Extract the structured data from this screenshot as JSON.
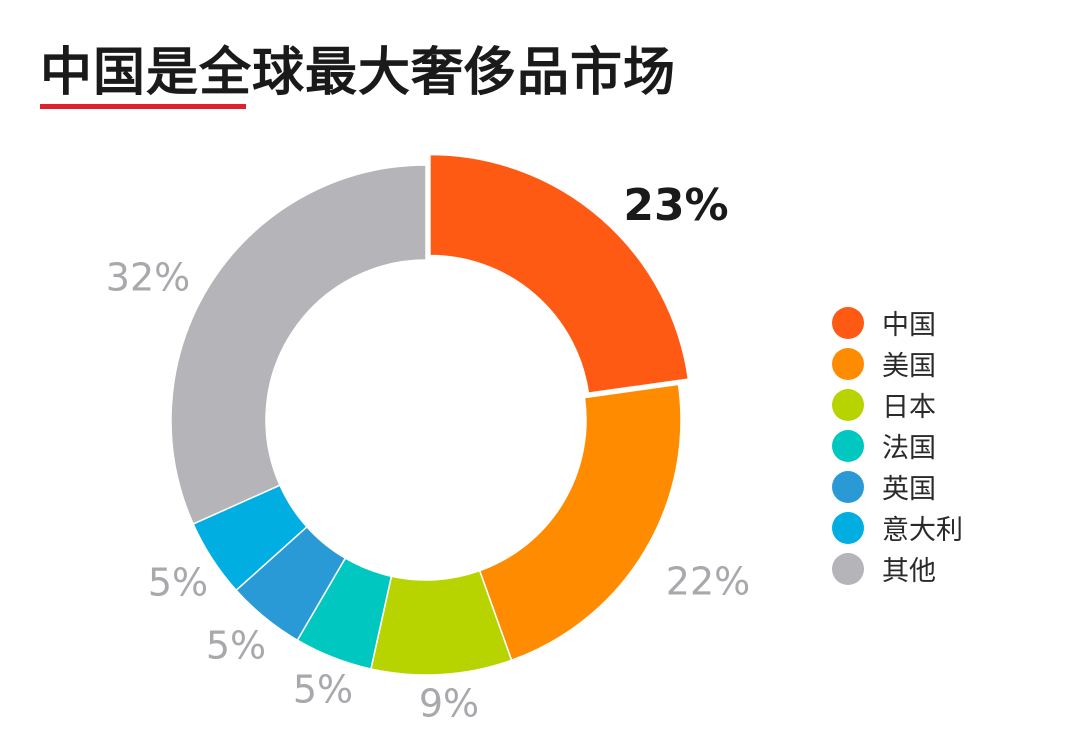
{
  "title": "中国是全球最大奢侈品市场",
  "colors": {
    "title_underline": "#e0202c",
    "label_gray": "#a9a9ad",
    "label_emphasis": "#1a1a1a"
  },
  "chart_data": {
    "type": "pie",
    "donut": true,
    "legend_position": "right",
    "slices": [
      {
        "name": "中国",
        "value": 23,
        "label": "23%",
        "color": "#ff5a14",
        "emphasized": true
      },
      {
        "name": "美国",
        "value": 22,
        "label": "22%",
        "color": "#ff8c00"
      },
      {
        "name": "日本",
        "value": 9,
        "label": "9%",
        "color": "#b8d400"
      },
      {
        "name": "法国",
        "value": 5,
        "label": "5%",
        "color": "#00c8c0"
      },
      {
        "name": "英国",
        "value": 5,
        "label": "5%",
        "color": "#2a9ad6"
      },
      {
        "name": "意大利",
        "value": 5,
        "label": "5%",
        "color": "#00aee2"
      },
      {
        "name": "其他",
        "value": 32,
        "label": "32%",
        "color": "#b4b4b9"
      }
    ]
  }
}
